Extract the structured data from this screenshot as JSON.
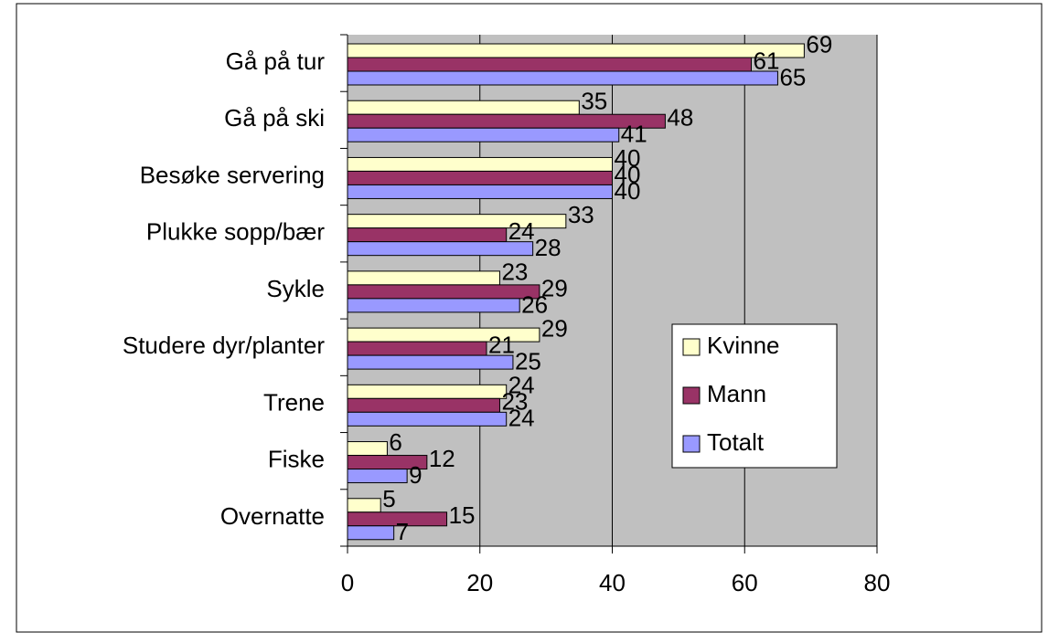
{
  "chart_data": {
    "type": "barh",
    "categories": [
      "Gå på tur",
      "Gå på ski",
      "Besøke servering",
      "Plukke sopp/bær",
      "Sykle",
      "Studere dyr/planter",
      "Trene",
      "Fiske",
      "Overnatte"
    ],
    "series": [
      {
        "name": "Kvinne",
        "color": "#ffffcc",
        "values": [
          69,
          35,
          40,
          33,
          23,
          29,
          24,
          6,
          5
        ]
      },
      {
        "name": "Mann",
        "color": "#993366",
        "values": [
          61,
          48,
          40,
          24,
          29,
          21,
          23,
          12,
          15
        ]
      },
      {
        "name": "Totalt",
        "color": "#9999ff",
        "values": [
          65,
          41,
          40,
          28,
          26,
          25,
          24,
          9,
          7
        ]
      }
    ],
    "xlim": [
      0,
      80
    ],
    "xticks": [
      0,
      20,
      40,
      60,
      80
    ],
    "grid": true,
    "legend": "right"
  }
}
